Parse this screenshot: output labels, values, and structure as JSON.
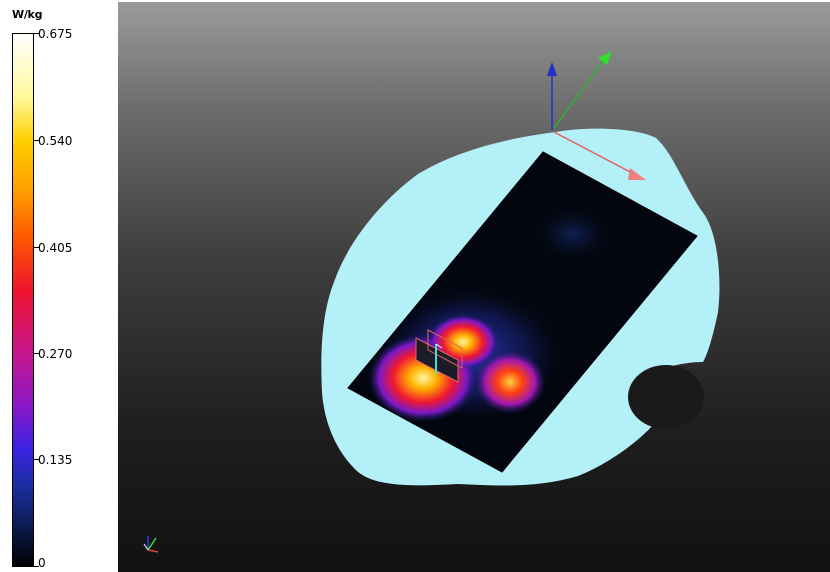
{
  "legend": {
    "unit": "W/kg",
    "ticks": [
      "0.675",
      "0.540",
      "0.405",
      "0.270",
      "0.135",
      "0"
    ],
    "max": 0.675,
    "min": 0
  },
  "scene": {
    "phantom_color": "#b4f0f8",
    "axis_colors": {
      "x": "#e87070",
      "y": "#30d030",
      "z": "#2030c8"
    }
  }
}
